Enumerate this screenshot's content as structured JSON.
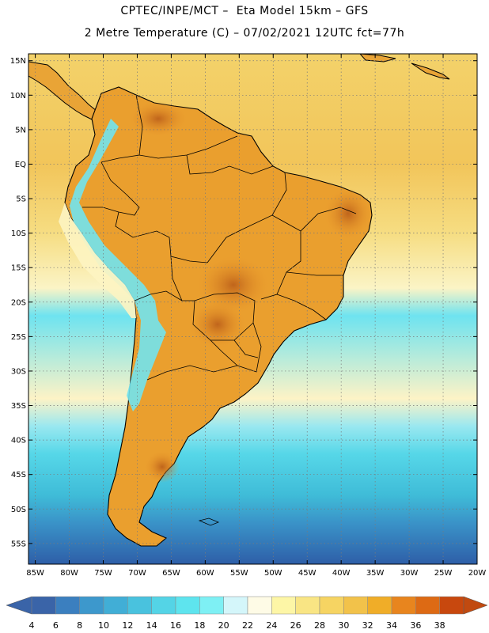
{
  "header": {
    "line1": "CPTEC/INPE/MCT –  Eta Model 15km – GFS",
    "line2": "2 Metre Temperature (C) – 07/02/2021 12UTC fct=77h"
  },
  "map": {
    "lat_labels": [
      "15N",
      "10N",
      "5N",
      "EQ",
      "5S",
      "10S",
      "15S",
      "20S",
      "25S",
      "30S",
      "35S",
      "40S",
      "45S",
      "50S",
      "55S"
    ],
    "lat_values": [
      15,
      10,
      5,
      0,
      -5,
      -10,
      -15,
      -20,
      -25,
      -30,
      -35,
      -40,
      -45,
      -50,
      -55
    ],
    "lon_labels": [
      "85W",
      "80W",
      "75W",
      "70W",
      "65W",
      "60W",
      "55W",
      "50W",
      "45W",
      "40W",
      "35W",
      "30W",
      "25W",
      "20W"
    ],
    "lon_values": [
      -85,
      -80,
      -75,
      -70,
      -65,
      -60,
      -55,
      -50,
      -45,
      -40,
      -35,
      -30,
      -25,
      -20
    ],
    "lon_range": [
      -86,
      -20
    ],
    "lat_range": [
      -58,
      16
    ],
    "gridlines": true,
    "ocean_gradient": [
      {
        "lat": 16,
        "color": "#f3d26a"
      },
      {
        "lat": 0,
        "color": "#f2c55a"
      },
      {
        "lat": -10,
        "color": "#f6dd82"
      },
      {
        "lat": -18,
        "color": "#fbf4c6"
      },
      {
        "lat": -22,
        "color": "#6ee3f0"
      },
      {
        "lat": -34,
        "color": "#fdf3c6"
      },
      {
        "lat": -38,
        "color": "#9ae8f0"
      },
      {
        "lat": -42,
        "color": "#56d7e8"
      },
      {
        "lat": -48,
        "color": "#3fbcd8"
      },
      {
        "lat": -52,
        "color": "#3a93c8"
      },
      {
        "lat": -58,
        "color": "#2e5fa8"
      }
    ],
    "land_color": "#ea9f2e",
    "andes_color": "#6ee6f2",
    "hot_color": "#c2621a"
  },
  "colorbar": {
    "labels": [
      "4",
      "6",
      "8",
      "10",
      "12",
      "14",
      "16",
      "18",
      "20",
      "22",
      "24",
      "26",
      "28",
      "30",
      "32",
      "34",
      "36",
      "38"
    ],
    "colors": [
      "#3a64a8",
      "#3b7fbf",
      "#3d98cc",
      "#41aed6",
      "#49c2de",
      "#54d4e6",
      "#5ee4ee",
      "#7ef0f4",
      "#d4f6fa",
      "#fefbe6",
      "#fdf6a6",
      "#f9e584",
      "#f6d462",
      "#f2c24a",
      "#f0ad28",
      "#e8851e",
      "#dd6a14",
      "#c8480e"
    ],
    "left_arrow_color": "#3a64a8",
    "right_arrow_color": "#c14a10"
  }
}
